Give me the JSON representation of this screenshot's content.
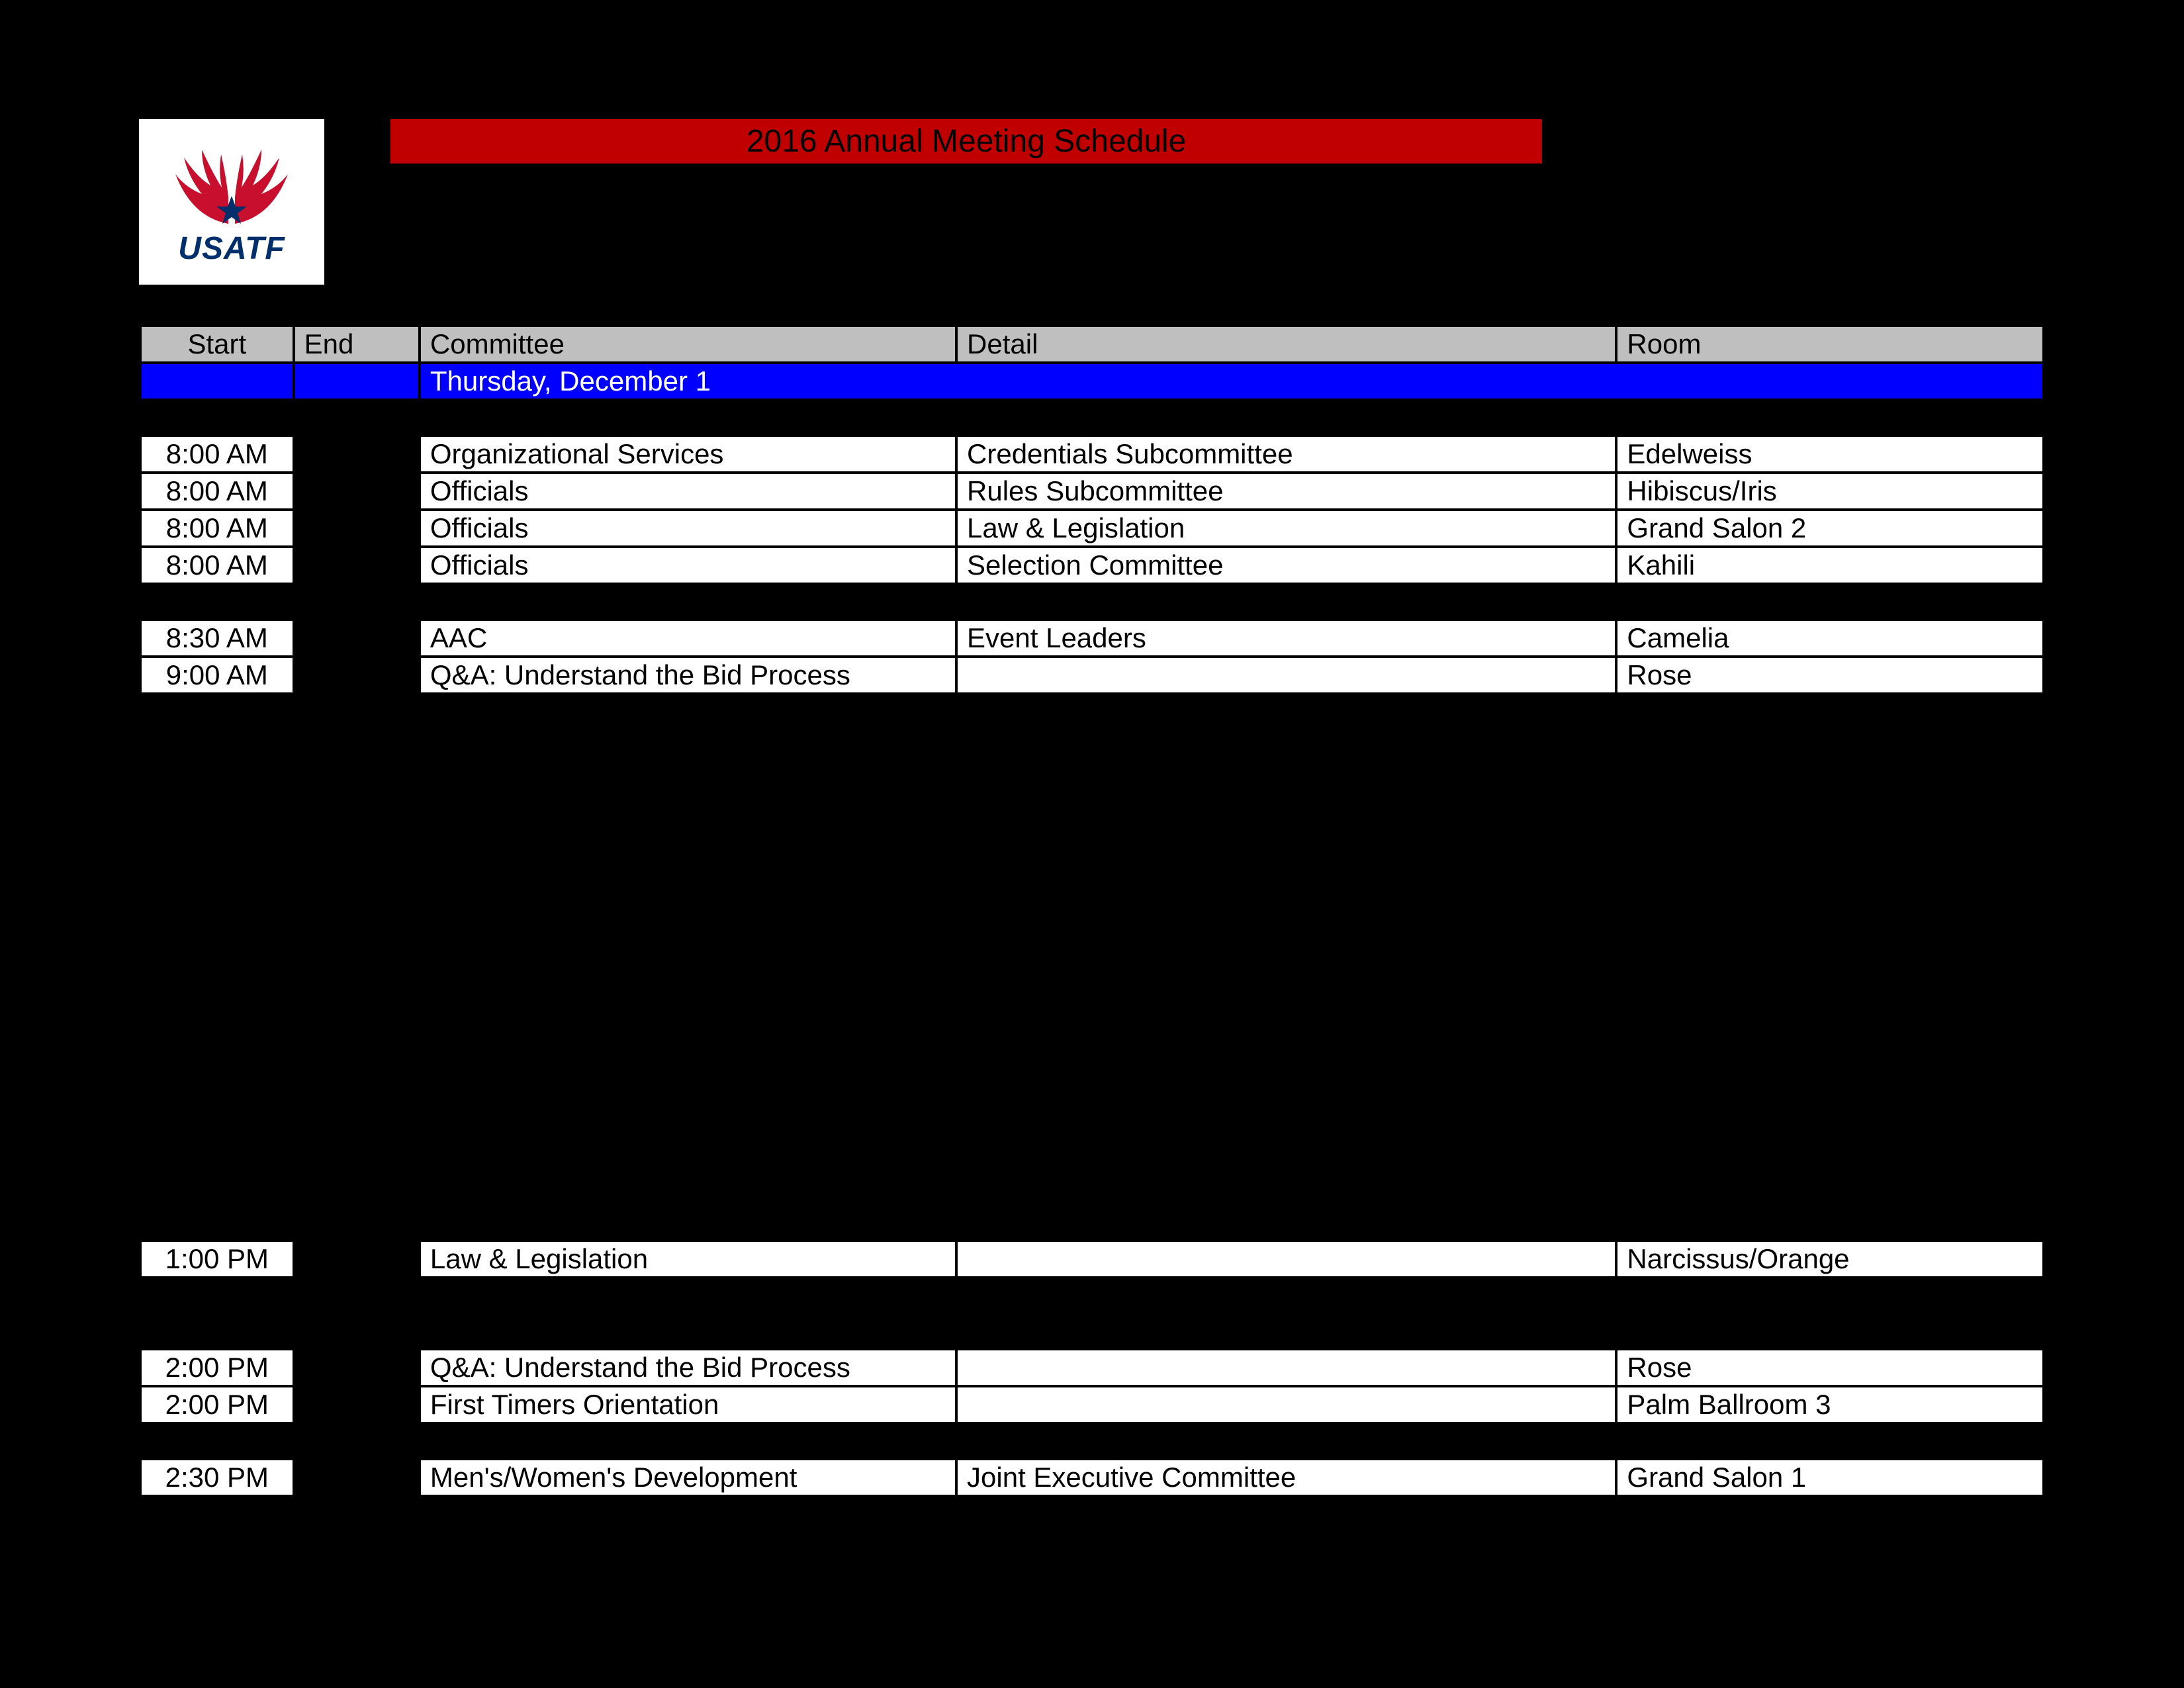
{
  "title": "2016 Annual Meeting Schedule",
  "logo_text": "USATF",
  "colors": {
    "page_bg": "#000000",
    "title_bg": "#c00000",
    "title_fg": "#000000",
    "header_bg": "#bfbfbf",
    "header_fg": "#000000",
    "date_bg": "#0000ff",
    "date_fg": "#ffffff",
    "row_white_bg": "#ffffff",
    "row_white_fg": "#000000",
    "row_black_bg": "#000000",
    "logo_red": "#c8102e",
    "logo_blue": "#002f6c"
  },
  "columns": {
    "start": "Start",
    "end": "End",
    "committee": "Committee",
    "detail": "Detail",
    "room": "Room"
  },
  "date_label": "Thursday, December 1",
  "rows_top": [
    {
      "type": "black"
    },
    {
      "type": "white",
      "start": "8:00 AM",
      "end": "",
      "committee": "Organizational Services",
      "detail": "Credentials Subcommittee",
      "room": "Edelweiss"
    },
    {
      "type": "white",
      "start": "8:00 AM",
      "end": "",
      "committee": "Officials",
      "detail": "Rules Subcommittee",
      "room": "Hibiscus/Iris"
    },
    {
      "type": "white",
      "start": "8:00 AM",
      "end": "",
      "committee": "Officials",
      "detail": "Law & Legislation",
      "room": "Grand Salon 2"
    },
    {
      "type": "white",
      "start": "8:00 AM",
      "end": "",
      "committee": "Officials",
      "detail": "Selection Committee",
      "room": "Kahili"
    },
    {
      "type": "black"
    },
    {
      "type": "white",
      "start": "8:30 AM",
      "end": "",
      "committee": "AAC",
      "detail": "Event Leaders",
      "room": "Camelia"
    },
    {
      "type": "white",
      "start": "9:00 AM",
      "end": "",
      "committee": "Q&A: Understand the Bid Process",
      "detail": "",
      "room": "Rose"
    },
    {
      "type": "black"
    },
    {
      "type": "black"
    },
    {
      "type": "black"
    },
    {
      "type": "black"
    },
    {
      "type": "black"
    },
    {
      "type": "black"
    },
    {
      "type": "black"
    },
    {
      "type": "black",
      "tall": true
    },
    {
      "type": "black"
    },
    {
      "type": "black"
    }
  ],
  "rows_bottom": [
    {
      "type": "black"
    },
    {
      "type": "black"
    },
    {
      "type": "black"
    },
    {
      "type": "white",
      "start": "1:00 PM",
      "end": "",
      "committee": "Law & Legislation",
      "detail": "",
      "room": "Narcissus/Orange"
    },
    {
      "type": "black"
    },
    {
      "type": "black"
    },
    {
      "type": "white",
      "start": "2:00 PM",
      "end": "",
      "committee": "Q&A: Understand the Bid Process",
      "detail": "",
      "room": "Rose"
    },
    {
      "type": "white",
      "start": "2:00 PM",
      "end": "",
      "committee": "First Timers Orientation",
      "detail": "",
      "room": "Palm Ballroom 3"
    },
    {
      "type": "black"
    },
    {
      "type": "white",
      "start": "2:30 PM",
      "end": "",
      "committee": "Men's/Women's Development",
      "detail": "Joint Executive Committee",
      "room": "Grand Salon 1"
    }
  ]
}
